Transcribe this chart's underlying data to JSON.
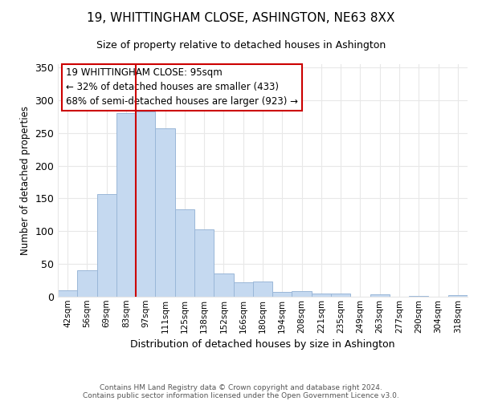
{
  "title": "19, WHITTINGHAM CLOSE, ASHINGTON, NE63 8XX",
  "subtitle": "Size of property relative to detached houses in Ashington",
  "xlabel": "Distribution of detached houses by size in Ashington",
  "ylabel": "Number of detached properties",
  "bar_labels": [
    "42sqm",
    "56sqm",
    "69sqm",
    "83sqm",
    "97sqm",
    "111sqm",
    "125sqm",
    "138sqm",
    "152sqm",
    "166sqm",
    "180sqm",
    "194sqm",
    "208sqm",
    "221sqm",
    "235sqm",
    "249sqm",
    "263sqm",
    "277sqm",
    "290sqm",
    "304sqm",
    "318sqm"
  ],
  "bar_values": [
    10,
    41,
    157,
    280,
    283,
    257,
    134,
    103,
    35,
    22,
    23,
    7,
    8,
    5,
    5,
    0,
    4,
    0,
    1,
    0,
    2
  ],
  "bar_color": "#c5d9f0",
  "bar_edge_color": "#9ab7d8",
  "vline_x_index": 4,
  "vline_color": "#cc0000",
  "ylim": [
    0,
    355
  ],
  "yticks": [
    0,
    50,
    100,
    150,
    200,
    250,
    300,
    350
  ],
  "annotation_title": "19 WHITTINGHAM CLOSE: 95sqm",
  "annotation_line1": "← 32% of detached houses are smaller (433)",
  "annotation_line2": "68% of semi-detached houses are larger (923) →",
  "annotation_box_color": "#ffffff",
  "annotation_box_edge": "#cc0000",
  "footer_line1": "Contains HM Land Registry data © Crown copyright and database right 2024.",
  "footer_line2": "Contains public sector information licensed under the Open Government Licence v3.0.",
  "background_color": "#ffffff",
  "grid_color": "#e8e8e8",
  "title_fontsize": 11,
  "subtitle_fontsize": 9,
  "xlabel_fontsize": 9,
  "ylabel_fontsize": 8.5,
  "ytick_fontsize": 9,
  "xtick_fontsize": 7.5,
  "annotation_fontsize": 8.5,
  "footer_fontsize": 6.5
}
